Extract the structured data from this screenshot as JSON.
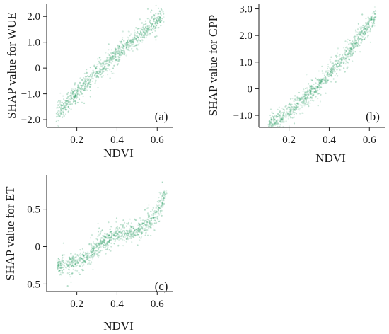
{
  "chart_data": [
    {
      "type": "scatter",
      "panel_label": "(a)",
      "xlabel": "NDVI",
      "ylabel": "SHAP value for WUE",
      "xlim": [
        0.05,
        0.68
      ],
      "ylim": [
        -2.3,
        2.5
      ],
      "xticks": [
        0.2,
        0.4,
        0.6
      ],
      "xtick_labels": [
        "0.2",
        "0.4",
        "0.6"
      ],
      "yticks": [
        -2.0,
        -1.0,
        0,
        1.0,
        2.0
      ],
      "ytick_labels": [
        "−2.0",
        "−1.0",
        "0",
        "1.0",
        "2.0"
      ],
      "color": "#2a9d63",
      "grid": false,
      "legend": "none",
      "series": [
        {
          "x": [
            0.1,
            0.13,
            0.16,
            0.2,
            0.24,
            0.28,
            0.32,
            0.36,
            0.4,
            0.44,
            0.48,
            0.52,
            0.56,
            0.6,
            0.63
          ],
          "y": [
            -1.8,
            -1.55,
            -1.25,
            -0.95,
            -0.65,
            -0.35,
            -0.05,
            0.25,
            0.55,
            0.8,
            1.05,
            1.3,
            1.55,
            1.8,
            1.95
          ]
        }
      ]
    },
    {
      "type": "scatter",
      "panel_label": "(b)",
      "xlabel": "NDVI",
      "ylabel": "SHAP value for GPP",
      "xlim": [
        0.05,
        0.68
      ],
      "ylim": [
        -1.45,
        3.2
      ],
      "xticks": [
        0.2,
        0.4,
        0.6
      ],
      "xtick_labels": [
        "0.2",
        "0.4",
        "0.6"
      ],
      "yticks": [
        -1.0,
        0,
        1.0,
        2.0,
        3.0
      ],
      "ytick_labels": [
        "−1.0",
        "0",
        "1.0",
        "2.0",
        "3.0"
      ],
      "color": "#2a9d63",
      "grid": false,
      "legend": "none",
      "series": [
        {
          "x": [
            0.1,
            0.13,
            0.16,
            0.2,
            0.24,
            0.28,
            0.32,
            0.36,
            0.4,
            0.44,
            0.48,
            0.52,
            0.56,
            0.6,
            0.63
          ],
          "y": [
            -1.3,
            -1.2,
            -1.05,
            -0.85,
            -0.6,
            -0.35,
            -0.05,
            0.25,
            0.6,
            0.9,
            1.2,
            1.55,
            2.0,
            2.45,
            2.75
          ]
        }
      ]
    },
    {
      "type": "scatter",
      "panel_label": "(c)",
      "xlabel": "NDVI",
      "ylabel": "SHAP value for ET",
      "xlim": [
        0.05,
        0.68
      ],
      "ylim": [
        -0.6,
        0.95
      ],
      "xticks": [
        0.2,
        0.4,
        0.6
      ],
      "xtick_labels": [
        "0.2",
        "0.4",
        "0.6"
      ],
      "yticks": [
        -0.5,
        0,
        0.5
      ],
      "ytick_labels": [
        "−0.5",
        "0",
        "0.5"
      ],
      "color": "#2a9d63",
      "grid": false,
      "legend": "none",
      "series": [
        {
          "x": [
            0.1,
            0.14,
            0.18,
            0.22,
            0.26,
            0.29,
            0.32,
            0.36,
            0.4,
            0.44,
            0.48,
            0.52,
            0.56,
            0.6,
            0.64
          ],
          "y": [
            -0.27,
            -0.25,
            -0.22,
            -0.18,
            -0.13,
            -0.05,
            0.05,
            0.12,
            0.16,
            0.18,
            0.2,
            0.24,
            0.32,
            0.45,
            0.7
          ]
        }
      ]
    }
  ]
}
